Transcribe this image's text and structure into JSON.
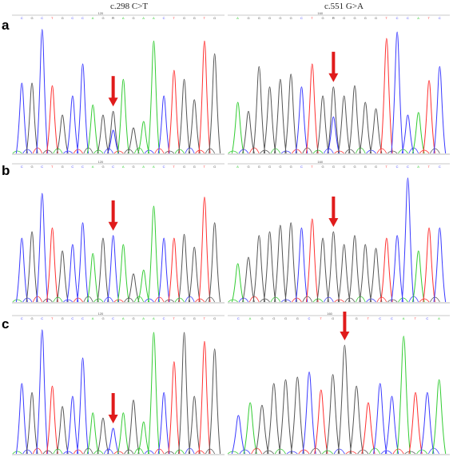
{
  "titles": {
    "left": "c.298 C>T",
    "right": "c.551 G>A"
  },
  "rows": [
    {
      "label": "a",
      "panels": [
        {
          "position_label": "120",
          "bases": [
            "C",
            "G",
            "C",
            "T",
            "G",
            "C",
            "C",
            "A",
            "G",
            "R",
            "A",
            "G",
            "A",
            "A",
            "C",
            "T",
            "G",
            "G",
            "T",
            "G"
          ],
          "heights": [
            0.55,
            0.55,
            0.97,
            0.53,
            0.3,
            0.45,
            0.7,
            0.38,
            0.3,
            0.33,
            0.58,
            0.2,
            0.25,
            0.88,
            0.45,
            0.65,
            0.58,
            0.42,
            0.88,
            0.78
          ],
          "arrow_index": 9
        },
        {
          "position_label": "160",
          "bases": [
            "A",
            "G",
            "G",
            "G",
            "G",
            "G",
            "C",
            "T",
            "G",
            "R",
            "G",
            "G",
            "G",
            "G",
            "T",
            "C",
            "C",
            "A",
            "T",
            "C"
          ],
          "heights": [
            0.4,
            0.33,
            0.68,
            0.52,
            0.58,
            0.62,
            0.52,
            0.7,
            0.45,
            0.52,
            0.45,
            0.53,
            0.4,
            0.35,
            0.9,
            0.95,
            0.3,
            0.32,
            0.57,
            0.68
          ],
          "arrow_index": 9
        }
      ]
    },
    {
      "label": "b",
      "panels": [
        {
          "position_label": "120",
          "bases": [
            "C",
            "G",
            "C",
            "T",
            "G",
            "C",
            "C",
            "A",
            "G",
            "C",
            "A",
            "G",
            "A",
            "A",
            "C",
            "T",
            "G",
            "G",
            "T",
            "G"
          ],
          "heights": [
            0.5,
            0.55,
            0.85,
            0.58,
            0.4,
            0.45,
            0.62,
            0.38,
            0.5,
            0.52,
            0.45,
            0.22,
            0.25,
            0.75,
            0.5,
            0.5,
            0.53,
            0.43,
            0.82,
            0.62
          ],
          "arrow_index": 9
        },
        {
          "position_label": "160",
          "bases": [
            "A",
            "G",
            "G",
            "G",
            "G",
            "G",
            "C",
            "T",
            "G",
            "G",
            "G",
            "G",
            "G",
            "G",
            "T",
            "C",
            "C",
            "A",
            "T",
            "C"
          ],
          "heights": [
            0.3,
            0.35,
            0.52,
            0.55,
            0.6,
            0.62,
            0.58,
            0.65,
            0.5,
            0.55,
            0.45,
            0.52,
            0.45,
            0.42,
            0.5,
            0.52,
            0.97,
            0.4,
            0.58,
            0.58
          ],
          "arrow_index": 9
        }
      ]
    },
    {
      "label": "c",
      "panels": [
        {
          "position_label": "120",
          "bases": [
            "C",
            "G",
            "C",
            "T",
            "G",
            "C",
            "C",
            "A",
            "G",
            "C",
            "A",
            "G",
            "A",
            "A",
            "C",
            "T",
            "G",
            "G",
            "T",
            "G"
          ],
          "heights": [
            0.55,
            0.48,
            0.97,
            0.53,
            0.37,
            0.45,
            0.75,
            0.32,
            0.28,
            0.2,
            0.32,
            0.42,
            0.25,
            0.95,
            0.48,
            0.72,
            0.95,
            0.45,
            0.88,
            0.82
          ],
          "arrow_index": 9
        },
        {
          "position_label": "160",
          "bases": [
            "C",
            "A",
            "G",
            "G",
            "G",
            "G",
            "C",
            "T",
            "G",
            "G",
            "G",
            "T",
            "C",
            "C",
            "A",
            "T",
            "C",
            "A"
          ],
          "heights": [
            0.3,
            0.4,
            0.38,
            0.55,
            0.58,
            0.6,
            0.64,
            0.5,
            0.62,
            0.85,
            0.53,
            0.4,
            0.55,
            0.45,
            0.92,
            0.48,
            0.48,
            0.58
          ],
          "arrow_index": 9
        }
      ]
    }
  ],
  "colors": {
    "A": "#33cc33",
    "C": "#3a3aff",
    "G": "#555555",
    "T": "#ff3030",
    "R": "#222222",
    "arrow": "#e01b1b"
  }
}
